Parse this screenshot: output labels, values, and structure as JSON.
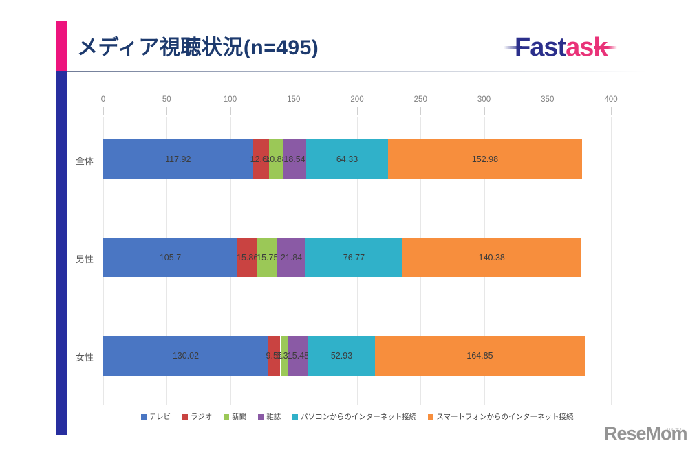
{
  "page": {
    "title": "メディア視聴状況(n=495)",
    "title_color": "#1d3a6e",
    "accent_pink": "#ed147d",
    "accent_navy": "#272e9f"
  },
  "brand": {
    "part1": "Fast",
    "part2": "ask",
    "part1_color": "#2b2f8b",
    "part2_color": "#e93278"
  },
  "watermark": {
    "text": "ReseMom.",
    "ruby": "リセマム"
  },
  "chart_data": {
    "type": "bar",
    "orientation": "horizontal",
    "stacked": true,
    "title": "メディア視聴状況(n=495)",
    "categories": [
      "全体",
      "男性",
      "女性"
    ],
    "series": [
      {
        "name": "テレビ",
        "color": "#4a76c3",
        "values": [
          117.92,
          105.7,
          130.02
        ]
      },
      {
        "name": "ラジオ",
        "color": "#c94341",
        "values": [
          12.64,
          15.86,
          9.55
        ]
      },
      {
        "name": "新聞",
        "color": "#9bc857",
        "values": [
          10.88,
          15.75,
          6.31
        ]
      },
      {
        "name": "雑誌",
        "color": "#8a5aa5",
        "values": [
          18.54,
          21.84,
          15.48
        ]
      },
      {
        "name": "パソコンからのインターネット接続",
        "color": "#30b1c9",
        "values": [
          64.33,
          76.77,
          52.93
        ]
      },
      {
        "name": "スマートフォンからのインターネット接続",
        "color": "#f78e3d",
        "values": [
          152.98,
          140.38,
          164.85
        ]
      }
    ],
    "x_axis": {
      "min": 0,
      "max": 400,
      "tick_interval": 50,
      "ticks": [
        0,
        50,
        100,
        150,
        200,
        250,
        300,
        350,
        400
      ],
      "position": "top"
    },
    "grid": "vertical",
    "legend_position": "bottom",
    "data_labels": true
  }
}
